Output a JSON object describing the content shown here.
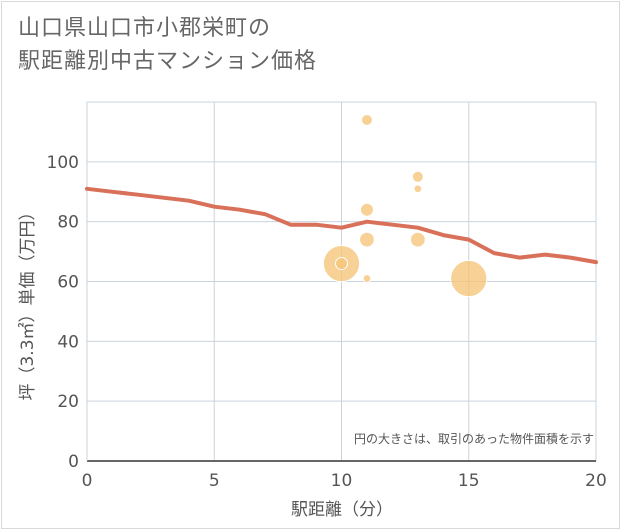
{
  "title_lines": [
    "山口県山口市小郡栄町の",
    "駅距離別中古マンション価格"
  ],
  "chart_data": {
    "type": "scatter",
    "title": "山口県山口市小郡栄町の駅距離別中古マンション価格",
    "xlabel": "駅距離（分）",
    "ylabel": "坪（3.3㎡）単価（万円）",
    "xlim": [
      0,
      20
    ],
    "ylim": [
      0,
      120
    ],
    "x_ticks": [
      0,
      5,
      10,
      15,
      20
    ],
    "y_ticks": [
      0,
      20,
      40,
      60,
      80,
      100
    ],
    "grid": true,
    "note": "円の大きさは、取引のあった物件面積を示す",
    "bubble_color": "#f5c57a",
    "line_color": "#d9705a",
    "bubbles": [
      {
        "x": 10,
        "y": 66,
        "size": 3
      },
      {
        "x": 10,
        "y": 66,
        "size": 1.2
      },
      {
        "x": 11,
        "y": 114,
        "size": 1
      },
      {
        "x": 11,
        "y": 84,
        "size": 1.4
      },
      {
        "x": 11,
        "y": 74,
        "size": 1.8
      },
      {
        "x": 11,
        "y": 61,
        "size": 0.5
      },
      {
        "x": 13,
        "y": 95,
        "size": 1
      },
      {
        "x": 13,
        "y": 91,
        "size": 0.5
      },
      {
        "x": 13,
        "y": 74,
        "size": 1.8
      },
      {
        "x": 15,
        "y": 61,
        "size": 3
      }
    ],
    "trend_line": {
      "x": [
        0,
        1,
        2,
        3,
        4,
        5,
        6,
        7,
        8,
        9,
        10,
        11,
        12,
        13,
        14,
        15,
        16,
        17,
        18,
        19,
        20
      ],
      "y": [
        91,
        90,
        89,
        88,
        87,
        85,
        84,
        82.5,
        79,
        79,
        78,
        80,
        79,
        78,
        75.5,
        74,
        69.5,
        68,
        69,
        68,
        66.5
      ]
    }
  }
}
